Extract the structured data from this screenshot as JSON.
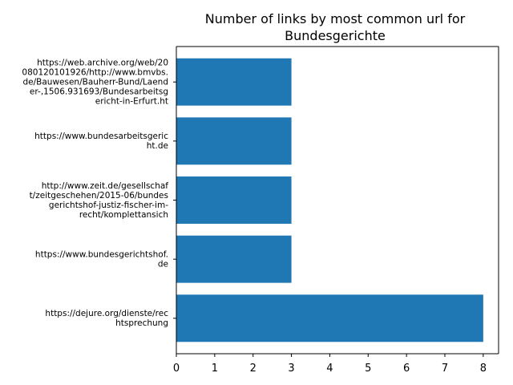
{
  "chart_data": {
    "type": "bar",
    "orientation": "horizontal",
    "title": "Number of links by most common url for Bundesgerichte",
    "title_lines": [
      "Number of links by most common url for",
      "Bundesgerichte"
    ],
    "xlabel": "",
    "ylabel": "",
    "categories": [
      "https://dejure.org/dienste/rechtsprechung",
      "https://www.bundesgerichtshof.de",
      "http://www.zeit.de/gesellschaft/zeitgeschehen/2015-06/bundesgerichtshof-justiz-fischer-im-recht/komplettansicht",
      "https://www.bundesarbeitsgericht.de",
      "https://web.archive.org/web/20080120101926/http://www.bmvbs.de/Bauwesen/Bauherr-Bund/Laender-,1506.931693/Bundesarbeitsgericht-in-Erfurt.ht"
    ],
    "category_label_lines": [
      [
        "https://dejure.org/dienste/rec",
        "htsprechung"
      ],
      [
        "https://www.bundesgerichtshof.",
        "de"
      ],
      [
        "http://www.zeit.de/gesellschaf",
        "t/zeitgeschehen/2015-06/bundes",
        "gerichtshof-justiz-fischer-im-",
        "recht/komplettansich"
      ],
      [
        "https://www.bundesarbeitsgeric",
        "ht.de"
      ],
      [
        "https://web.archive.org/web/20",
        "080120101926/http://www.bmvbs.",
        "de/Bauwesen/Bauherr-Bund/Laend",
        "er-,1506.931693/Bundesarbeitsg",
        "ericht-in-Erfurt.ht"
      ]
    ],
    "values": [
      8,
      3,
      3,
      3,
      3
    ],
    "xlim": [
      0,
      8.4
    ],
    "xticks": [
      0,
      1,
      2,
      3,
      4,
      5,
      6,
      7,
      8
    ],
    "bar_color": "#1f77b4",
    "grid": false
  }
}
